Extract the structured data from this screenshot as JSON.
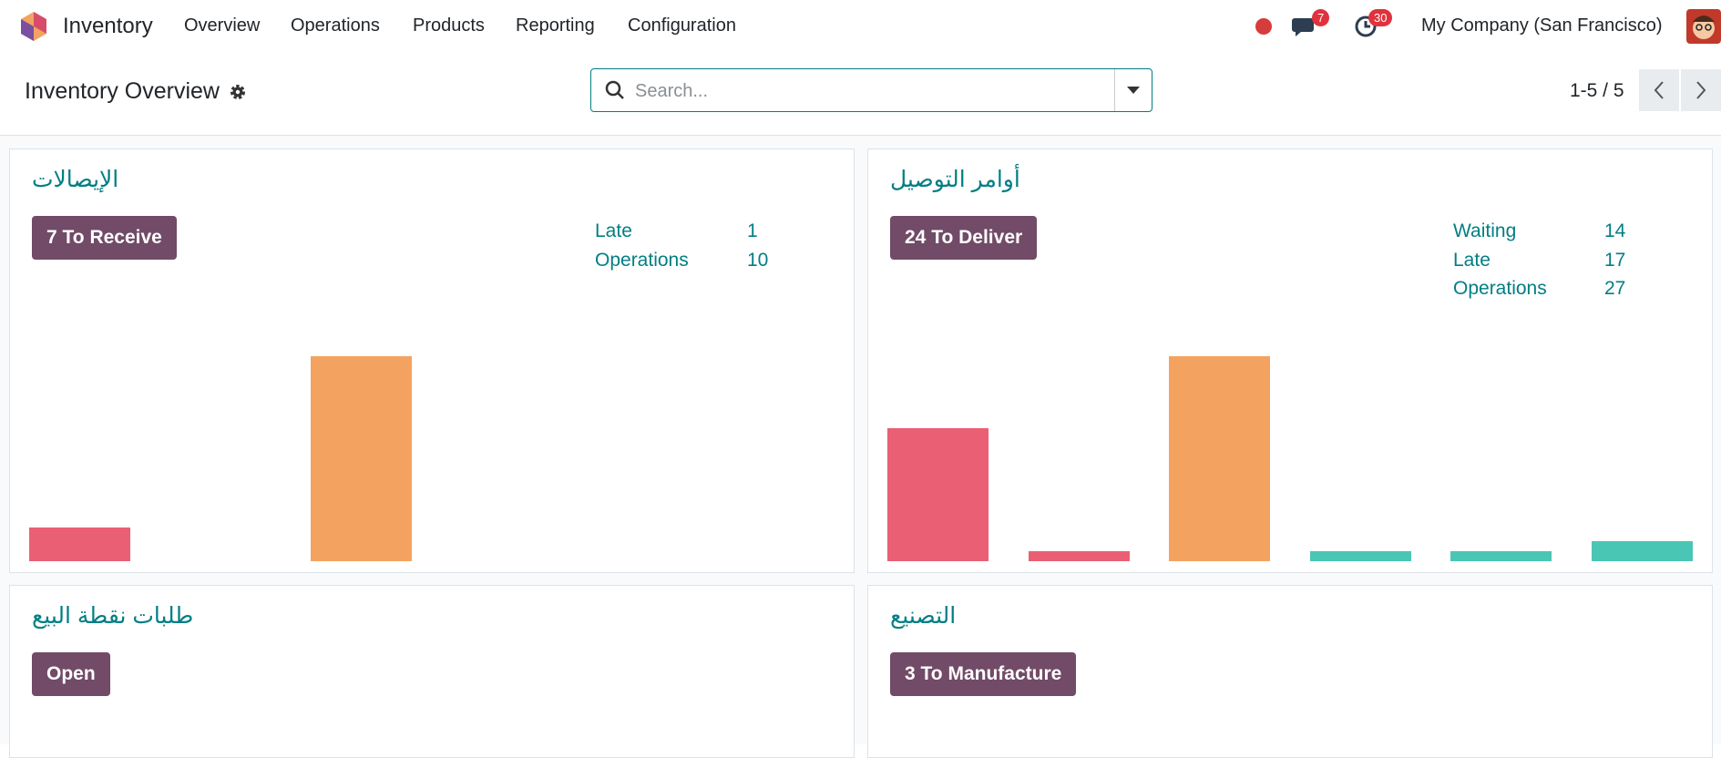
{
  "navbar": {
    "app": "Inventory",
    "menu": [
      "Overview",
      "Operations",
      "Products",
      "Reporting",
      "Configuration"
    ],
    "messages_badge": 7,
    "activities_badge": 30,
    "company": "My Company (San Francisco)"
  },
  "control_panel": {
    "title": "Inventory Overview",
    "search_placeholder": "Search...",
    "pager": "1-5 / 5"
  },
  "cards": [
    {
      "title": "الإيصالات",
      "button": "7 To Receive",
      "stats": [
        {
          "label": "Late",
          "value": 1
        },
        {
          "label": "Operations",
          "value": 10
        }
      ],
      "graph": {
        "type": "bar",
        "ylim": [
          0,
          6
        ],
        "values": [
          1,
          0,
          6
        ],
        "colors": [
          "#ea5f74",
          "#ea5f74",
          "#f3a35f"
        ]
      }
    },
    {
      "title": "أوامر التوصيل",
      "button": "24 To Deliver",
      "stats": [
        {
          "label": "Waiting",
          "value": 14
        },
        {
          "label": "Late",
          "value": 17
        },
        {
          "label": "Operations",
          "value": 27
        }
      ],
      "graph": {
        "type": "bar",
        "ylim": [
          0,
          20
        ],
        "values": [
          13,
          1,
          20,
          1,
          1,
          2
        ],
        "colors": [
          "#ea5f74",
          "#ea5f74",
          "#f3a35f",
          "#4ac6b4",
          "#4ac6b4",
          "#4ac6b4"
        ]
      }
    },
    {
      "title": "طلبات نقطة البيع",
      "button": "Open"
    },
    {
      "title": "التصنيع",
      "button": "3 To Manufacture"
    }
  ]
}
